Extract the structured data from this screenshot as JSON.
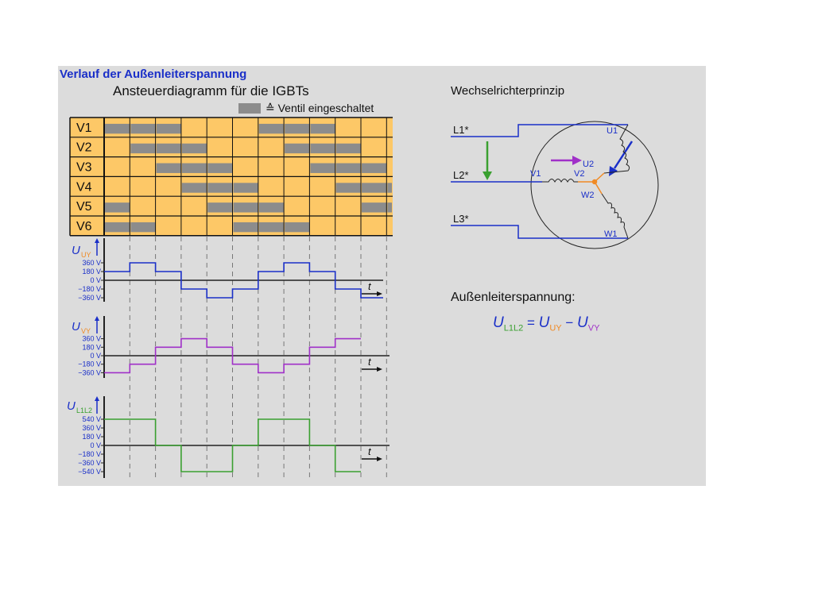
{
  "slide_title": "Verlauf der Außenleiterspannung",
  "grid": {
    "title": "Ansteuerdiagramm für die IGBTs",
    "legend": "≙ Ventil eingeschaltet",
    "rows": [
      {
        "label": "V1",
        "on": [
          0,
          1,
          2,
          6,
          7,
          8
        ]
      },
      {
        "label": "V2",
        "on": [
          1,
          2,
          3,
          7,
          8,
          9
        ]
      },
      {
        "label": "V3",
        "on": [
          2,
          3,
          4,
          8,
          9,
          10
        ]
      },
      {
        "label": "V4",
        "on": [
          3,
          4,
          5,
          9,
          10,
          11
        ]
      },
      {
        "label": "V5",
        "on": [
          0,
          4,
          5,
          6,
          10,
          11
        ]
      },
      {
        "label": "V6",
        "on": [
          0,
          1,
          5,
          6,
          7
        ]
      }
    ],
    "colors": {
      "off": "#fdc867",
      "on": "#8c8c8c"
    }
  },
  "chart_data": [
    {
      "type": "line",
      "ylabel": "U",
      "ylabel_sub": "UY",
      "sub_color": "#f08a24",
      "color": "#1a2fc8",
      "yticks": [
        "360 V",
        "180 V",
        "0 V",
        "−180 V",
        "−360 V"
      ],
      "ytick_values": [
        360,
        180,
        0,
        -180,
        -360
      ],
      "xlabel": "t",
      "values": [
        180,
        360,
        180,
        -180,
        -360,
        -180,
        180,
        360,
        180,
        -180,
        -360
      ]
    },
    {
      "type": "line",
      "ylabel": "U",
      "ylabel_sub": "VY",
      "sub_color": "#f08a24",
      "color": "#a030c8",
      "yticks": [
        "360 V",
        "180 V",
        "0 V",
        "−180 V",
        "−360 V"
      ],
      "ytick_values": [
        360,
        180,
        0,
        -180,
        -360
      ],
      "xlabel": "t",
      "values": [
        -360,
        -180,
        180,
        360,
        180,
        -180,
        -360,
        -180,
        180,
        360
      ]
    },
    {
      "type": "line",
      "ylabel": "U",
      "ylabel_sub": "L1L2",
      "sub_color": "#3aa030",
      "color": "#3aa030",
      "yticks": [
        "540 V",
        "360 V",
        "180 V",
        "0 V",
        "−180 V",
        "−360 V",
        "−540 V"
      ],
      "ytick_values": [
        540,
        360,
        180,
        0,
        -180,
        -360,
        -540
      ],
      "xlabel": "t",
      "values": [
        540,
        540,
        0,
        -540,
        -540,
        0,
        540,
        540,
        0,
        -540
      ]
    }
  ],
  "circuit": {
    "title": "Wechselrichterprinzip",
    "lines": [
      "L1*",
      "L2*",
      "L3*"
    ],
    "terminals": [
      "U1",
      "U2",
      "V1",
      "V2",
      "W2",
      "W1"
    ]
  },
  "formula": {
    "title": "Außenleiterspannung:",
    "lhs": "U",
    "lhs_sub": "L1L2",
    "eq": "=",
    "a": "U",
    "a_sub": "UY",
    "minus": "−",
    "b": "U",
    "b_sub": "VY"
  }
}
